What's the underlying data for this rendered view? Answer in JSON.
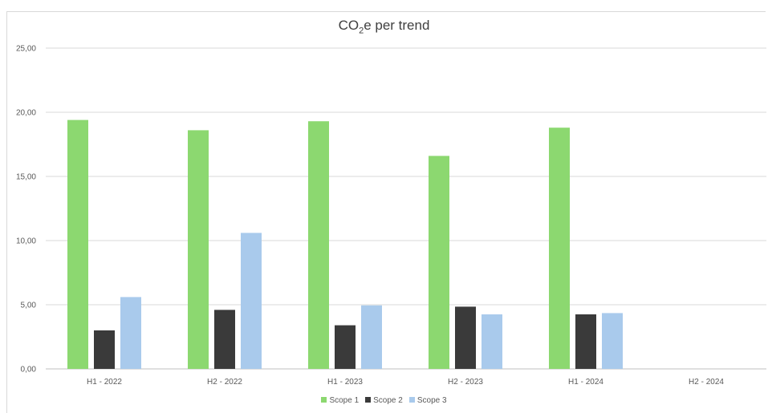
{
  "chart_data": {
    "type": "bar",
    "title_main": "CO",
    "title_sub": "2",
    "title_rest": "e per trend",
    "categories": [
      "H1 - 2022",
      "H2 - 2022",
      "H1 - 2023",
      "H2 - 2023",
      "H1 - 2024",
      "H2 - 2024"
    ],
    "series": [
      {
        "name": "Scope 1",
        "color": "#8cd870",
        "values": [
          19.4,
          18.6,
          19.3,
          16.6,
          18.8,
          null
        ]
      },
      {
        "name": "Scope 2",
        "color": "#3a3a3a",
        "values": [
          3.0,
          4.6,
          3.4,
          4.85,
          4.25,
          null
        ]
      },
      {
        "name": "Scope 3",
        "color": "#a9caec",
        "values": [
          5.6,
          10.6,
          4.95,
          4.25,
          4.35,
          null
        ]
      }
    ],
    "ylim": [
      0,
      25
    ],
    "yticks": [
      "0,00",
      "5,00",
      "10,00",
      "15,00",
      "20,00",
      "25,00"
    ],
    "grid": true,
    "legend_position": "bottom"
  }
}
